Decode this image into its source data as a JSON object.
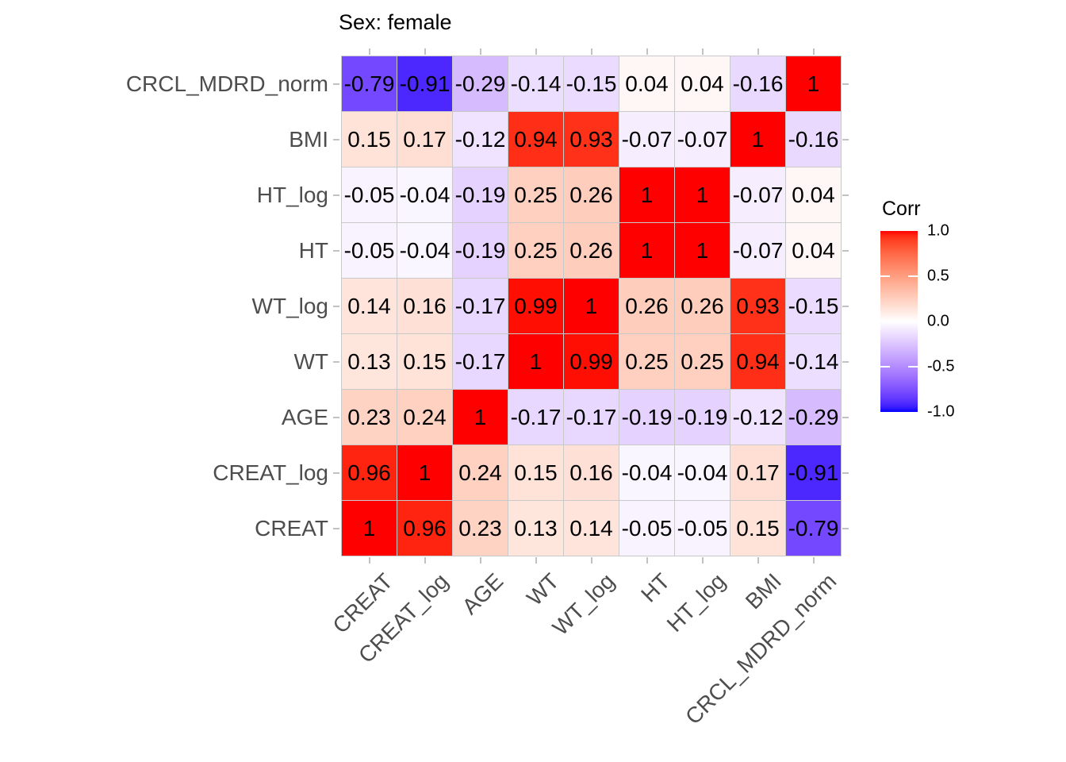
{
  "chart_data": {
    "type": "heatmap",
    "title": "Sex: female",
    "x_categories": [
      "CREAT",
      "CREAT_log",
      "AGE",
      "WT",
      "WT_log",
      "HT",
      "HT_log",
      "BMI",
      "CRCL_MDRD_norm"
    ],
    "y_categories_top_to_bottom": [
      "CRCL_MDRD_norm",
      "BMI",
      "HT_log",
      "HT",
      "WT_log",
      "WT",
      "AGE",
      "CREAT_log",
      "CREAT"
    ],
    "matrix_rows_top_to_bottom": [
      [
        -0.79,
        -0.91,
        -0.29,
        -0.14,
        -0.15,
        0.04,
        0.04,
        -0.16,
        1
      ],
      [
        0.15,
        0.17,
        -0.12,
        0.94,
        0.93,
        -0.07,
        -0.07,
        1,
        -0.16
      ],
      [
        -0.05,
        -0.04,
        -0.19,
        0.25,
        0.26,
        1,
        1,
        -0.07,
        0.04
      ],
      [
        -0.05,
        -0.04,
        -0.19,
        0.25,
        0.26,
        1,
        1,
        -0.07,
        0.04
      ],
      [
        0.14,
        0.16,
        -0.17,
        0.99,
        1,
        0.26,
        0.26,
        0.93,
        -0.15
      ],
      [
        0.13,
        0.15,
        -0.17,
        1,
        0.99,
        0.25,
        0.25,
        0.94,
        -0.14
      ],
      [
        0.23,
        0.24,
        1,
        -0.17,
        -0.17,
        -0.19,
        -0.19,
        -0.12,
        -0.29
      ],
      [
        0.96,
        1,
        0.24,
        0.15,
        0.16,
        -0.04,
        -0.04,
        0.17,
        -0.91
      ],
      [
        1,
        0.96,
        0.23,
        0.13,
        0.14,
        -0.05,
        -0.05,
        0.15,
        -0.79
      ]
    ],
    "label_matrix_rows_top_to_bottom": [
      [
        "-0.79",
        "-0.91",
        "-0.29",
        "-0.14",
        "-0.15",
        "0.04",
        "0.04",
        "-0.16",
        "1"
      ],
      [
        "0.15",
        "0.17",
        "-0.12",
        "0.94",
        "0.93",
        "-0.07",
        "-0.07",
        "1",
        "-0.16"
      ],
      [
        "-0.05",
        "-0.04",
        "-0.19",
        "0.25",
        "0.26",
        "1",
        "1",
        "-0.07",
        "0.04"
      ],
      [
        "-0.05",
        "-0.04",
        "-0.19",
        "0.25",
        "0.26",
        "1",
        "1",
        "-0.07",
        "0.04"
      ],
      [
        "0.14",
        "0.16",
        "-0.17",
        "0.99",
        "1",
        "0.26",
        "0.26",
        "0.93",
        "-0.15"
      ],
      [
        "0.13",
        "0.15",
        "-0.17",
        "1",
        "0.99",
        "0.25",
        "0.25",
        "0.94",
        "-0.14"
      ],
      [
        "0.23",
        "0.24",
        "1",
        "-0.17",
        "-0.17",
        "-0.19",
        "-0.19",
        "-0.12",
        "-0.29"
      ],
      [
        "0.96",
        "1",
        "0.24",
        "0.15",
        "0.16",
        "-0.04",
        "-0.04",
        "0.17",
        "-0.91"
      ],
      [
        "1",
        "0.96",
        "0.23",
        "0.13",
        "0.14",
        "-0.05",
        "-0.05",
        "0.15",
        "-0.79"
      ]
    ],
    "value_range": [
      -1,
      1
    ],
    "legend": {
      "title": "Corr",
      "tick_labels": [
        "1.0",
        "0.5",
        "0.0",
        "-0.5",
        "-1.0"
      ],
      "tick_values": [
        1,
        0.5,
        0,
        -0.5,
        -1
      ],
      "position": "right"
    },
    "grid": "light gray tile outlines",
    "colors": {
      "high": "#FF0000",
      "mid": "#FFFFFF",
      "low": "#0000FF",
      "tile_outline": "#C9C9C9",
      "axis_text": "#4D4D4D",
      "tick_mark": "#C2C2C2",
      "cell_text": "#000000",
      "title_text": "#000000"
    }
  }
}
